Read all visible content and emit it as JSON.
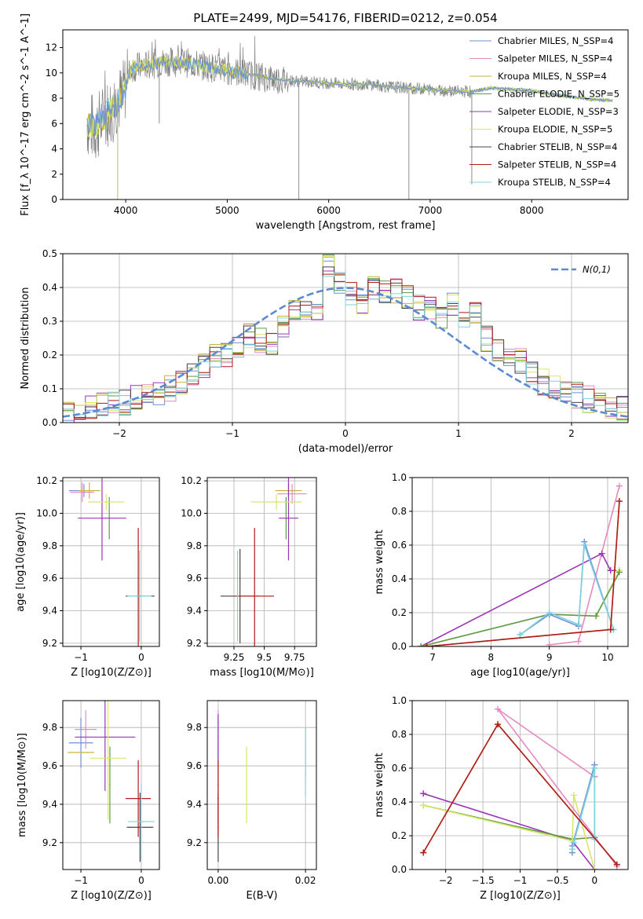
{
  "colors": [
    "#6e8fd6",
    "#e58ac0",
    "#c8b43a",
    "#5f9a4a",
    "#9a35b3",
    "#d8e66a",
    "#444444",
    "#b01a1a",
    "#7fd3dc"
  ],
  "chart_data": [
    {
      "id": "spectrum",
      "type": "line",
      "title": "PLATE=2499, MJD=54176, FIBERID=0212, z=0.054",
      "xlabel": "wavelength [Angstrom, rest frame]",
      "ylabel": "Flux [f_λ 10^-17 erg cm^-2 s^-1 A^-1]",
      "xlim": [
        3380,
        8950
      ],
      "ylim": [
        0,
        13.4
      ],
      "xticks": [
        4000,
        5000,
        6000,
        7000,
        8000
      ],
      "yticks": [
        0,
        2,
        4,
        6,
        8,
        10,
        12
      ],
      "legend_position": "top-right",
      "grid": false,
      "legend": [
        "Chabrier MILES, N_SSP=4",
        "Salpeter MILES, N_SSP=4",
        "Kroupa MILES, N_SSP=4",
        "Chabrier ELODIE, N_SSP=5",
        "Salpeter ELODIE, N_SSP=3",
        "Kroupa ELODIE, N_SSP=5",
        "Chabrier STELIB, N_SSP=4",
        "Salpeter STELIB, N_SSP=4",
        "Kroupa STELIB, N_SSP=4"
      ],
      "continuum": [
        [
          3620,
          6.0
        ],
        [
          3700,
          5.6
        ],
        [
          3800,
          6.6
        ],
        [
          3900,
          7.5
        ],
        [
          3970,
          8.2
        ],
        [
          4050,
          10.4
        ],
        [
          4200,
          10.6
        ],
        [
          4400,
          10.9
        ],
        [
          4600,
          10.8
        ],
        [
          4800,
          10.5
        ],
        [
          5000,
          10.2
        ],
        [
          5200,
          9.9
        ],
        [
          5400,
          9.6
        ],
        [
          5600,
          9.4
        ],
        [
          5800,
          9.3
        ],
        [
          6000,
          9.2
        ],
        [
          6200,
          9.1
        ],
        [
          6400,
          9.1
        ],
        [
          6600,
          8.9
        ],
        [
          6800,
          8.8
        ],
        [
          7000,
          8.7
        ],
        [
          7200,
          8.6
        ],
        [
          7400,
          8.5
        ],
        [
          7600,
          8.8
        ],
        [
          7800,
          8.7
        ],
        [
          8000,
          8.6
        ],
        [
          8200,
          8.3
        ],
        [
          8400,
          8.1
        ],
        [
          8600,
          7.9
        ],
        [
          8800,
          7.8
        ]
      ],
      "gaps": [
        [
          5705,
          0
        ],
        [
          6790,
          0
        ],
        [
          3920,
          0
        ],
        [
          4330,
          6.0
        ],
        [
          7410,
          1.2
        ]
      ]
    },
    {
      "id": "residuals",
      "type": "bar",
      "xlabel": "(data-model)/error",
      "ylabel": "Normed distribution",
      "xlim": [
        -2.5,
        2.5
      ],
      "ylim": [
        0,
        0.5
      ],
      "xticks": [
        -2,
        -1,
        0,
        1,
        2
      ],
      "yticks": [
        0.0,
        0.1,
        0.2,
        0.3,
        0.4,
        0.5
      ],
      "grid": true,
      "legend": [
        "N(0,1)"
      ],
      "legend_position": "top-right",
      "bin_width": 0.1,
      "base_hist": [
        0.03,
        0.03,
        0.04,
        0.05,
        0.06,
        0.06,
        0.07,
        0.08,
        0.09,
        0.1,
        0.12,
        0.14,
        0.17,
        0.2,
        0.2,
        0.22,
        0.26,
        0.24,
        0.23,
        0.28,
        0.33,
        0.34,
        0.33,
        0.46,
        0.42,
        0.38,
        0.36,
        0.4,
        0.38,
        0.39,
        0.37,
        0.34,
        0.34,
        0.31,
        0.35,
        0.3,
        0.32,
        0.25,
        0.22,
        0.2,
        0.18,
        0.14,
        0.12,
        0.1,
        0.09,
        0.08,
        0.07,
        0.06,
        0.05,
        0.04
      ]
    },
    {
      "id": "age-vs-Z",
      "type": "scatter",
      "xlabel": "Z [log10(Z/Z⊙)]",
      "ylabel": "age [log10(age/yr)]",
      "xlim": [
        -1.3,
        0.3
      ],
      "ylim": [
        9.18,
        10.22
      ],
      "xticks": [
        -1,
        0
      ],
      "yticks": [
        9.2,
        9.4,
        9.6,
        9.8,
        10.0,
        10.2
      ],
      "grid": true,
      "points": [
        {
          "x": -0.95,
          "y": 10.14,
          "xe": 0.25,
          "ye": 0.04,
          "c": 0
        },
        {
          "x": -0.98,
          "y": 10.13,
          "xe": 0.2,
          "ye": 0.06,
          "c": 1
        },
        {
          "x": -0.86,
          "y": 10.14,
          "xe": 0.18,
          "ye": 0.05,
          "c": 2
        },
        {
          "x": -0.53,
          "y": 9.97,
          "xe": 0.0,
          "ye": 0.13,
          "c": 3
        },
        {
          "x": -0.65,
          "y": 9.97,
          "xe": 0.4,
          "ye": 0.26,
          "c": 4
        },
        {
          "x": -0.58,
          "y": 10.07,
          "xe": 0.3,
          "ye": 0.05,
          "c": 5
        },
        {
          "x": -0.02,
          "y": 9.49,
          "xe": 0.24,
          "ye": 0.0,
          "c": 6
        },
        {
          "x": -0.05,
          "y": 9.49,
          "xe": 0.0,
          "ye": 0.42,
          "c": 7
        },
        {
          "x": -0.03,
          "y": 9.49,
          "xe": 0.2,
          "ye": 0.28,
          "c": 8
        }
      ]
    },
    {
      "id": "age-vs-mass",
      "type": "scatter",
      "xlabel": "mass [log10(M/M⊙)]",
      "ylabel": "",
      "xlim": [
        9.03,
        9.93
      ],
      "ylim": [
        9.18,
        10.22
      ],
      "xticks": [
        9.25,
        9.5,
        9.75
      ],
      "yticks": [
        9.2,
        9.4,
        9.6,
        9.8,
        10.0,
        10.2
      ],
      "grid": true,
      "points": [
        {
          "x": 9.7,
          "y": 10.14,
          "xe": 0.08,
          "ye": 0.04,
          "c": 0
        },
        {
          "x": 9.73,
          "y": 10.12,
          "xe": 0.12,
          "ye": 0.06,
          "c": 1
        },
        {
          "x": 9.7,
          "y": 10.14,
          "xe": 0.11,
          "ye": 0.05,
          "c": 2
        },
        {
          "x": 9.68,
          "y": 9.97,
          "xe": 0.0,
          "ye": 0.13,
          "c": 3
        },
        {
          "x": 9.7,
          "y": 9.97,
          "xe": 0.08,
          "ye": 0.26,
          "c": 4
        },
        {
          "x": 9.6,
          "y": 10.07,
          "xe": 0.21,
          "ye": 0.05,
          "c": 5
        },
        {
          "x": 9.3,
          "y": 9.49,
          "xe": 0.16,
          "ye": 0.29,
          "c": 6
        },
        {
          "x": 9.42,
          "y": 9.49,
          "xe": 0.16,
          "ye": 0.42,
          "c": 7
        },
        {
          "x": 9.28,
          "y": 9.49,
          "xe": 0.0,
          "ye": 0.28,
          "c": 8
        }
      ]
    },
    {
      "id": "weight-vs-age",
      "type": "line",
      "xlabel": "age [log10(age/yr)]",
      "ylabel": "mass weight",
      "xlim": [
        6.65,
        10.35
      ],
      "ylim": [
        0,
        1
      ],
      "xticks": [
        7,
        8,
        9,
        10
      ],
      "yticks": [
        0.0,
        0.2,
        0.4,
        0.6,
        0.8,
        1.0
      ],
      "grid": true,
      "series": [
        {
          "c": 1,
          "x": [
            9.0,
            9.5,
            10.2
          ],
          "y": [
            0.01,
            0.03,
            0.95
          ]
        },
        {
          "c": 4,
          "x": [
            6.8,
            9.9,
            10.05,
            10.2
          ],
          "y": [
            0.0,
            0.55,
            0.45,
            0.45
          ]
        },
        {
          "c": 5,
          "x": [
            6.8,
            9.0,
            9.8,
            10.2
          ],
          "y": [
            0.0,
            0.19,
            0.18,
            0.45
          ]
        },
        {
          "c": 3,
          "x": [
            6.8,
            9.0,
            9.8,
            10.2
          ],
          "y": [
            0.0,
            0.19,
            0.18,
            0.44
          ]
        },
        {
          "c": 0,
          "x": [
            8.5,
            9.0,
            9.5,
            9.6,
            10.1
          ],
          "y": [
            0.07,
            0.19,
            0.12,
            0.62,
            0.1
          ]
        },
        {
          "c": 8,
          "x": [
            8.5,
            9.0,
            9.5,
            9.6,
            10.1
          ],
          "y": [
            0.07,
            0.2,
            0.13,
            0.6,
            0.1
          ]
        },
        {
          "c": 2,
          "x": [
            6.9,
            10.05,
            10.2
          ],
          "y": [
            0.0,
            0.1,
            0.86
          ]
        },
        {
          "c": 7,
          "x": [
            6.9,
            10.05,
            10.2
          ],
          "y": [
            0.0,
            0.1,
            0.86
          ]
        }
      ]
    },
    {
      "id": "mass-vs-Z",
      "type": "scatter",
      "xlabel": "Z [log10(Z/Z⊙)]",
      "ylabel": "mass [log10(M/M⊙)]",
      "xlim": [
        -1.3,
        0.3
      ],
      "ylim": [
        9.06,
        9.94
      ],
      "xticks": [
        -1,
        0
      ],
      "yticks": [
        9.2,
        9.4,
        9.6,
        9.8
      ],
      "grid": true,
      "points": [
        {
          "x": -1.0,
          "y": 9.72,
          "xe": 0.2,
          "ye": 0.13,
          "c": 0
        },
        {
          "x": -0.92,
          "y": 9.79,
          "xe": 0.18,
          "ye": 0.1,
          "c": 1
        },
        {
          "x": -1.0,
          "y": 9.67,
          "xe": 0.22,
          "ye": 0.0,
          "c": 2
        },
        {
          "x": -0.52,
          "y": 9.5,
          "xe": 0.0,
          "ye": 0.2,
          "c": 3
        },
        {
          "x": -0.6,
          "y": 9.75,
          "xe": 0.5,
          "ye": 0.28,
          "c": 4
        },
        {
          "x": -0.55,
          "y": 9.64,
          "xe": 0.3,
          "ye": 0.32,
          "c": 5
        },
        {
          "x": -0.02,
          "y": 9.28,
          "xe": 0.22,
          "ye": 0.18,
          "c": 6
        },
        {
          "x": -0.05,
          "y": 9.43,
          "xe": 0.21,
          "ye": 0.2,
          "c": 7
        },
        {
          "x": 0.0,
          "y": 9.31,
          "xe": 0.22,
          "ye": 0.2,
          "c": 8
        }
      ]
    },
    {
      "id": "mass-vs-EBV",
      "type": "scatter",
      "xlabel": "E(B-V)",
      "ylabel": "",
      "xlim": [
        -0.0025,
        0.0225
      ],
      "ylim": [
        9.06,
        9.94
      ],
      "xticks": [
        0.0,
        0.02
      ],
      "xtick_labels": [
        "0.00",
        "0.02"
      ],
      "yticks": [
        9.2,
        9.4,
        9.6,
        9.8
      ],
      "grid": true,
      "points": [
        {
          "x": 0.0,
          "y": 9.72,
          "xe": 0.0,
          "ye": 0.13,
          "c": 0
        },
        {
          "x": 0.0,
          "y": 9.79,
          "xe": 0.0,
          "ye": 0.1,
          "c": 1
        },
        {
          "x": 0.02,
          "y": 9.67,
          "xe": 0.0,
          "ye": 0.13,
          "c": 2
        },
        {
          "x": 0.0,
          "y": 9.5,
          "xe": 0.0,
          "ye": 0.2,
          "c": 3
        },
        {
          "x": 0.0,
          "y": 9.75,
          "xe": 0.0,
          "ye": 0.12,
          "c": 4
        },
        {
          "x": 0.0065,
          "y": 9.5,
          "xe": 0.0,
          "ye": 0.2,
          "c": 5
        },
        {
          "x": 0.0,
          "y": 9.28,
          "xe": 0.0,
          "ye": 0.18,
          "c": 6
        },
        {
          "x": 0.0,
          "y": 9.43,
          "xe": 0.0,
          "ye": 0.2,
          "c": 7
        },
        {
          "x": 0.02,
          "y": 9.62,
          "xe": 0.0,
          "ye": 0.18,
          "c": 8
        }
      ]
    },
    {
      "id": "weight-vs-Z",
      "type": "line",
      "xlabel": "Z [log10(Z/Z⊙)]",
      "ylabel": "mass weight",
      "xlim": [
        -2.45,
        0.45
      ],
      "ylim": [
        0,
        1
      ],
      "xticks": [
        -2.0,
        -1.5,
        -1.0,
        -0.5,
        0.0
      ],
      "yticks": [
        0.0,
        0.2,
        0.4,
        0.6,
        0.8,
        1.0
      ],
      "grid": true,
      "series": [
        {
          "c": 4,
          "x": [
            -2.3,
            -0.3,
            0.0
          ],
          "y": [
            0.45,
            0.17,
            0.0
          ]
        },
        {
          "c": 3,
          "x": [
            -2.3,
            -0.3,
            0.0
          ],
          "y": [
            0.38,
            0.18,
            0.19
          ]
        },
        {
          "c": 5,
          "x": [
            -2.3,
            -0.3,
            -0.28,
            0.0
          ],
          "y": [
            0.38,
            0.17,
            0.44,
            0.0
          ]
        },
        {
          "c": 1,
          "x": [
            0.3,
            -1.3,
            0.0,
            0.0
          ],
          "y": [
            0.02,
            0.95,
            0.55,
            0.62
          ]
        },
        {
          "c": 0,
          "x": [
            -0.3,
            -0.3,
            0.0,
            0.0
          ],
          "y": [
            0.1,
            0.14,
            0.62,
            0.19
          ]
        },
        {
          "c": 8,
          "x": [
            -0.3,
            -0.28,
            0.0,
            0.0
          ],
          "y": [
            0.12,
            0.16,
            0.6,
            0.18
          ]
        },
        {
          "c": 2,
          "x": [
            -2.3,
            -1.3,
            0.3
          ],
          "y": [
            0.1,
            0.86,
            0.03
          ]
        },
        {
          "c": 7,
          "x": [
            -2.3,
            -1.3,
            0.3
          ],
          "y": [
            0.1,
            0.86,
            0.03
          ]
        }
      ]
    }
  ]
}
